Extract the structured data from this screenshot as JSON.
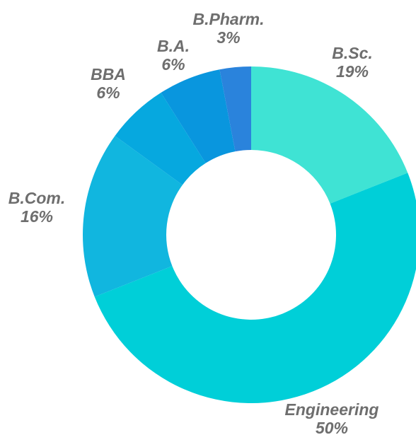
{
  "chart_data": {
    "type": "pie",
    "title": "",
    "categories": [
      "B.Sc.",
      "Engineering",
      "B.Com.",
      "BBA",
      "B.A.",
      "B.Pharm."
    ],
    "values": [
      19,
      50,
      16,
      6,
      6,
      3
    ],
    "value_labels": [
      "19%",
      "50%",
      "16%",
      "6%",
      "6%",
      "3%"
    ],
    "colors": [
      "#3fe3d4",
      "#00cfd8",
      "#11b6df",
      "#06a8df",
      "#0996de",
      "#2a83dc"
    ],
    "style": "donut",
    "legend": "none"
  }
}
